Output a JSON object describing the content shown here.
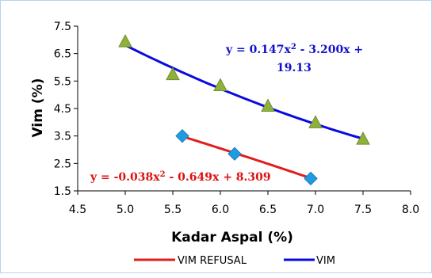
{
  "chart_data": {
    "type": "scatter",
    "xlabel": "Kadar Aspal (%)",
    "ylabel": "Vim (%)",
    "xlim": [
      4.5,
      8.0
    ],
    "ylim": [
      1.5,
      7.5
    ],
    "x_ticks": [
      "4.5",
      "5.0",
      "5.5",
      "6.0",
      "6.5",
      "7.0",
      "7.5",
      "8.0"
    ],
    "y_ticks": [
      "1.5",
      "2.5",
      "3.5",
      "4.5",
      "5.5",
      "6.5",
      "7.5"
    ],
    "grid": false,
    "legend_position": "bottom",
    "series": [
      {
        "name": "VIM REFUSAL",
        "marker": "diamond",
        "marker_color": "#1f9be0",
        "line_color": "#e01e1e",
        "points": [
          [
            5.6,
            3.5
          ],
          [
            6.15,
            2.85
          ],
          [
            6.95,
            1.95
          ]
        ],
        "trendline": {
          "equation_text": {
            "prefix": "y = -0.038x",
            "sup": "2",
            "suffix": " - 0.649x + 8.309"
          },
          "x_range": [
            5.6,
            6.95
          ],
          "coeffs": [
            -0.038,
            -0.649,
            8.309
          ]
        }
      },
      {
        "name": "VIM",
        "marker": "triangle",
        "marker_color": "#8fb13c",
        "line_color": "#0a0ae0",
        "points": [
          [
            5.0,
            6.95
          ],
          [
            5.5,
            5.75
          ],
          [
            6.0,
            5.35
          ],
          [
            6.5,
            4.6
          ],
          [
            7.0,
            4.0
          ],
          [
            7.5,
            3.4
          ]
        ],
        "trendline": {
          "equation_text": {
            "prefix": "y = 0.147x",
            "sup": "2",
            "suffix": " - 3.200x +",
            "line2": "19.13"
          },
          "x_range": [
            5.0,
            7.5
          ],
          "coeffs": [
            0.147,
            -3.2,
            19.13
          ]
        }
      }
    ]
  }
}
